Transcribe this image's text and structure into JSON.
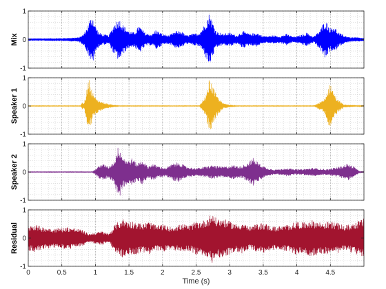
{
  "chart_data": [
    {
      "type": "line",
      "ylabel": "Mix",
      "color": "#0000FF",
      "xlim": [
        0,
        5
      ],
      "ylim": [
        -1,
        1
      ],
      "yticks": [
        "-1",
        "0",
        "1"
      ],
      "grid": "dotted, major and minor",
      "envelope": {
        "t": [
          0,
          0.5,
          0.75,
          0.82,
          0.88,
          0.95,
          1.0,
          1.05,
          1.1,
          1.2,
          1.28,
          1.35,
          1.42,
          1.5,
          1.58,
          1.65,
          1.75,
          1.85,
          1.9,
          2.0,
          2.1,
          2.2,
          2.28,
          2.35,
          2.45,
          2.55,
          2.62,
          2.7,
          2.75,
          2.8,
          2.9,
          3.0,
          3.1,
          3.2,
          3.3,
          3.4,
          3.48,
          3.55,
          3.65,
          3.75,
          3.85,
          3.95,
          4.05,
          4.15,
          4.25,
          4.35,
          4.42,
          4.5,
          4.55,
          4.62,
          4.7,
          4.8,
          4.9,
          5.0
        ],
        "amp": [
          0.04,
          0.05,
          0.08,
          0.18,
          0.45,
          0.9,
          0.5,
          0.25,
          0.2,
          0.15,
          0.55,
          0.75,
          0.5,
          0.3,
          0.25,
          0.5,
          0.22,
          0.2,
          0.35,
          0.2,
          0.15,
          0.3,
          0.3,
          0.15,
          0.2,
          0.25,
          0.5,
          0.95,
          0.6,
          0.3,
          0.2,
          0.25,
          0.15,
          0.3,
          0.2,
          0.25,
          0.15,
          0.12,
          0.15,
          0.12,
          0.2,
          0.1,
          0.15,
          0.25,
          0.1,
          0.35,
          0.7,
          0.4,
          0.5,
          0.25,
          0.15,
          0.08,
          0.08,
          0.05
        ]
      }
    },
    {
      "type": "line",
      "ylabel": "Speaker 1",
      "color": "#EDB120",
      "xlim": [
        0,
        5
      ],
      "ylim": [
        -1,
        1
      ],
      "yticks": [
        "-1",
        "0",
        "1"
      ],
      "grid": "dotted, major and minor",
      "envelope": {
        "t": [
          0,
          0.78,
          0.8,
          0.83,
          0.86,
          0.9,
          0.95,
          1.0,
          1.05,
          1.15,
          1.25,
          1.35,
          2.55,
          2.6,
          2.65,
          2.7,
          2.75,
          2.8,
          2.85,
          2.9,
          3.0,
          3.1,
          4.25,
          4.35,
          4.4,
          4.45,
          4.5,
          4.55,
          4.6,
          4.65,
          4.7,
          5.0
        ],
        "amp": [
          0.01,
          0.01,
          0.12,
          0.1,
          0.4,
          1.0,
          0.55,
          0.3,
          0.2,
          0.1,
          0.05,
          0.01,
          0.01,
          0.2,
          0.4,
          1.0,
          0.7,
          0.4,
          0.25,
          0.1,
          0.05,
          0.01,
          0.01,
          0.15,
          0.2,
          0.5,
          0.85,
          0.5,
          0.25,
          0.15,
          0.05,
          0.01
        ]
      }
    },
    {
      "type": "line",
      "ylabel": "Speaker 2",
      "color": "#7E2F8E",
      "xlim": [
        0,
        5
      ],
      "ylim": [
        -1,
        1
      ],
      "yticks": [
        "-1",
        "0",
        "1"
      ],
      "grid": "dotted, major and minor",
      "envelope": {
        "t": [
          0,
          0.95,
          1.0,
          1.05,
          1.1,
          1.2,
          1.28,
          1.35,
          1.4,
          1.48,
          1.55,
          1.62,
          1.7,
          1.78,
          1.85,
          1.95,
          2.05,
          2.15,
          2.25,
          2.35,
          2.45,
          2.55,
          2.65,
          2.75,
          2.85,
          2.95,
          3.05,
          3.15,
          3.25,
          3.35,
          3.45,
          3.55,
          3.65,
          3.75,
          3.85,
          3.95,
          4.05,
          4.15,
          4.25,
          4.35,
          4.45,
          4.55,
          4.65,
          4.75,
          4.85,
          4.92,
          5.0
        ],
        "amp": [
          0.01,
          0.01,
          0.1,
          0.22,
          0.3,
          0.2,
          0.4,
          1.0,
          0.6,
          0.4,
          0.5,
          0.3,
          0.45,
          0.2,
          0.3,
          0.2,
          0.15,
          0.3,
          0.35,
          0.2,
          0.15,
          0.15,
          0.2,
          0.25,
          0.2,
          0.2,
          0.25,
          0.2,
          0.3,
          0.5,
          0.3,
          0.15,
          0.1,
          0.1,
          0.15,
          0.1,
          0.1,
          0.12,
          0.15,
          0.12,
          0.1,
          0.15,
          0.2,
          0.3,
          0.2,
          0.05,
          0.01
        ]
      }
    },
    {
      "type": "line",
      "ylabel": "Residual",
      "xlabel": "Time (s)",
      "color": "#A2142F",
      "xlim": [
        0,
        5
      ],
      "ylim": [
        -1,
        1
      ],
      "yticks": [
        "-1",
        "0",
        "1"
      ],
      "xticks": [
        "0",
        "0.5",
        "1",
        "1.5",
        "2",
        "2.5",
        "3",
        "3.5",
        "4",
        "4.5"
      ],
      "grid": "dotted, major and minor",
      "envelope": {
        "t": [
          0,
          0.1,
          0.2,
          0.4,
          0.6,
          0.8,
          0.9,
          1.0,
          1.1,
          1.2,
          1.3,
          1.4,
          1.5,
          1.6,
          1.7,
          1.8,
          1.9,
          2.0,
          2.1,
          2.2,
          2.3,
          2.4,
          2.5,
          2.6,
          2.7,
          2.75,
          2.8,
          2.9,
          3.0,
          3.1,
          3.2,
          3.3,
          3.4,
          3.5,
          3.6,
          3.7,
          3.8,
          3.9,
          4.0,
          4.1,
          4.2,
          4.3,
          4.4,
          4.5,
          4.6,
          4.7,
          4.8,
          4.9,
          5.0
        ],
        "amp": [
          0.45,
          0.5,
          0.4,
          0.35,
          0.4,
          0.3,
          0.15,
          0.2,
          0.25,
          0.15,
          0.5,
          0.7,
          0.6,
          0.6,
          0.5,
          0.6,
          0.45,
          0.5,
          0.4,
          0.45,
          0.5,
          0.45,
          0.6,
          0.6,
          0.8,
          0.9,
          0.7,
          0.7,
          0.6,
          0.5,
          0.55,
          0.4,
          0.5,
          0.55,
          0.45,
          0.4,
          0.45,
          0.5,
          0.6,
          0.55,
          0.65,
          0.6,
          0.55,
          0.6,
          0.55,
          0.45,
          0.5,
          0.6,
          0.7
        ]
      }
    }
  ]
}
